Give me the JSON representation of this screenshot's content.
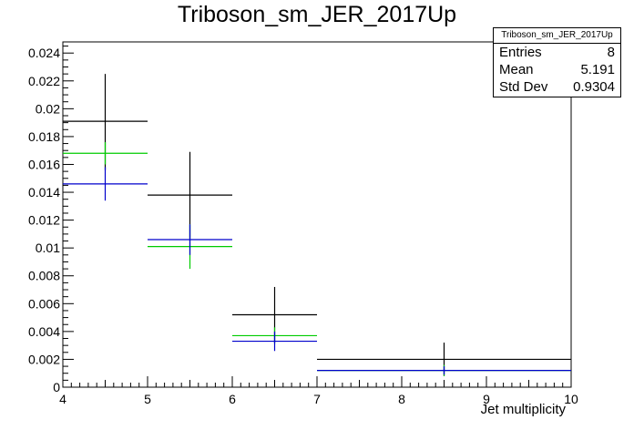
{
  "title": "Triboson_sm_JER_2017Up",
  "stats": {
    "name": "Triboson_sm_JER_2017Up",
    "rows": [
      {
        "key": "Entries",
        "value": "8"
      },
      {
        "key": "Mean",
        "value": "5.191"
      },
      {
        "key": "Std Dev",
        "value": "0.9304"
      }
    ]
  },
  "chart_data": {
    "type": "histogram",
    "title": "Triboson_sm_JER_2017Up",
    "xlabel": "Jet multiplicity",
    "ylabel": "",
    "xlim": [
      4,
      10
    ],
    "ylim": [
      0,
      0.0248
    ],
    "xticks": [
      "4",
      "5",
      "6",
      "7",
      "8",
      "9",
      "10"
    ],
    "yticks": [
      "0",
      "0.002",
      "0.004",
      "0.006",
      "0.008",
      "0.01",
      "0.012",
      "0.014",
      "0.016",
      "0.018",
      "0.02",
      "0.022",
      "0.024"
    ],
    "grid": false,
    "series": [
      {
        "color": "#000000",
        "bins": [
          {
            "xlow": 4,
            "xhigh": 5,
            "y": 0.0191,
            "ylow": 0.0156,
            "yhigh": 0.0225
          },
          {
            "xlow": 5,
            "xhigh": 6,
            "y": 0.0138,
            "ylow": 0.0107,
            "yhigh": 0.0169
          },
          {
            "xlow": 6,
            "xhigh": 7,
            "y": 0.0052,
            "ylow": 0.0032,
            "yhigh": 0.0072
          },
          {
            "xlow": 7,
            "xhigh": 10,
            "y": 0.002,
            "ylow": 0.0008,
            "yhigh": 0.0032
          }
        ]
      },
      {
        "color": "#00cc00",
        "bins": [
          {
            "xlow": 4,
            "xhigh": 5,
            "y": 0.0168,
            "ylow": 0.016,
            "yhigh": 0.0176
          },
          {
            "xlow": 5,
            "xhigh": 6,
            "y": 0.0101,
            "ylow": 0.0085,
            "yhigh": 0.0117
          },
          {
            "xlow": 6,
            "xhigh": 7,
            "y": 0.0037,
            "ylow": 0.0031,
            "yhigh": 0.0043
          },
          {
            "xlow": 7,
            "xhigh": 10,
            "y": 0.0012,
            "ylow": 0.0008,
            "yhigh": 0.0016
          }
        ]
      },
      {
        "color": "#0000cc",
        "bins": [
          {
            "xlow": 4,
            "xhigh": 5,
            "y": 0.0146,
            "ylow": 0.0134,
            "yhigh": 0.0158
          },
          {
            "xlow": 5,
            "xhigh": 6,
            "y": 0.0106,
            "ylow": 0.0095,
            "yhigh": 0.0117
          },
          {
            "xlow": 6,
            "xhigh": 7,
            "y": 0.0033,
            "ylow": 0.0026,
            "yhigh": 0.004
          },
          {
            "xlow": 7,
            "xhigh": 10,
            "y": 0.0012,
            "ylow": 0.0009,
            "yhigh": 0.0015
          }
        ]
      }
    ]
  }
}
